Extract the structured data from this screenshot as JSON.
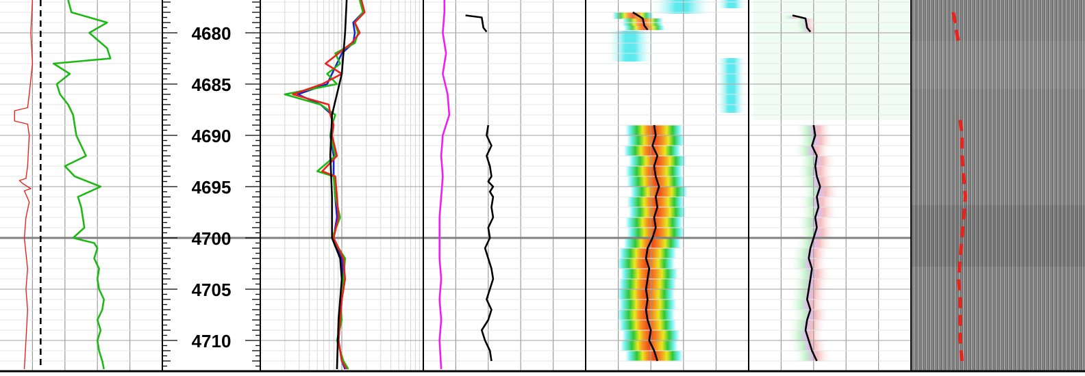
{
  "chart_data": {
    "type": "line",
    "title": "",
    "depth_axis": {
      "range": [
        4676.8,
        4712.8
      ],
      "major_labels": [
        4680,
        4685,
        4690,
        4695,
        4700,
        4705,
        4710
      ],
      "minor_tick_interval": 0.5,
      "reference_line": 4700
    },
    "tracks": [
      {
        "name": "track-1",
        "series": [
          {
            "color": "#e8231b",
            "depth": [
              4676.8,
              4680,
              4683,
              4686,
              4687.3,
              4687.6,
              4688.6,
              4688.9,
              4690,
              4693,
              4694.2,
              4694.4,
              4694.7,
              4695.2,
              4695.4,
              4696.5,
              4698,
              4700,
              4703,
              4705,
              4707,
              4710,
              4712.8
            ],
            "value": [
              0.2,
              0.19,
              0.2,
              0.18,
              0.17,
              0.09,
              0.09,
              0.17,
              0.18,
              0.17,
              0.16,
              0.12,
              0.14,
              0.19,
              0.15,
              0.18,
              0.16,
              0.15,
              0.17,
              0.16,
              0.17,
              0.16,
              0.15
            ]
          },
          {
            "color": "#000000",
            "dashed": true,
            "depth": [
              4676.8,
              4712.8
            ],
            "value": [
              0.25,
              0.25
            ]
          },
          {
            "color": "#1db814",
            "depth": [
              4676.8,
              4678,
              4679,
              4680,
              4681.5,
              4682.5,
              4683,
              4684,
              4685,
              4686,
              4687,
              4688,
              4690,
              4691,
              4692,
              4693,
              4694,
              4695,
              4696,
              4697,
              4698,
              4699,
              4700,
              4700.5,
              4701,
              4702,
              4703,
              4704,
              4705,
              4706,
              4707,
              4708,
              4709,
              4710,
              4711,
              4712,
              4712.8
            ],
            "value": [
              0.42,
              0.44,
              0.66,
              0.55,
              0.66,
              0.68,
              0.33,
              0.43,
              0.35,
              0.37,
              0.42,
              0.45,
              0.47,
              0.5,
              0.53,
              0.4,
              0.46,
              0.62,
              0.48,
              0.5,
              0.51,
              0.52,
              0.45,
              0.58,
              0.6,
              0.58,
              0.61,
              0.6,
              0.61,
              0.64,
              0.63,
              0.6,
              0.62,
              0.6,
              0.61,
              0.63,
              0.64
            ]
          }
        ]
      },
      {
        "name": "track-2",
        "log_scale": true,
        "series": [
          {
            "color": "#1a26c9",
            "depth": [
              4676.8,
              4678,
              4679,
              4680,
              4681,
              4682,
              4683,
              4684,
              4685,
              4686,
              4687,
              4688,
              4689,
              4690,
              4692,
              4694,
              4696,
              4698,
              4700,
              4702,
              4704,
              4706,
              4708,
              4710,
              4712,
              4712.8
            ],
            "value": [
              0.62,
              0.63,
              0.57,
              0.58,
              0.57,
              0.5,
              0.47,
              0.44,
              0.41,
              0.23,
              0.37,
              0.44,
              0.44,
              0.43,
              0.45,
              0.45,
              0.46,
              0.47,
              0.45,
              0.5,
              0.51,
              0.5,
              0.49,
              0.48,
              0.5,
              0.52
            ]
          },
          {
            "color": "#1db814",
            "depth": [
              4676.8,
              4678,
              4679,
              4680,
              4681,
              4682,
              4683,
              4684,
              4685,
              4686,
              4687,
              4688,
              4689,
              4690,
              4692,
              4693.5,
              4694,
              4696,
              4698,
              4700,
              4702,
              4704,
              4706,
              4708,
              4710,
              4712,
              4712.8
            ],
            "value": [
              0.61,
              0.63,
              0.58,
              0.6,
              0.58,
              0.46,
              0.49,
              0.41,
              0.47,
              0.15,
              0.37,
              0.46,
              0.44,
              0.43,
              0.46,
              0.35,
              0.45,
              0.46,
              0.49,
              0.44,
              0.52,
              0.51,
              0.49,
              0.5,
              0.47,
              0.51,
              0.54
            ]
          },
          {
            "color": "#e8231b",
            "depth": [
              4676.8,
              4678,
              4679,
              4680,
              4681,
              4682,
              4683,
              4684,
              4685,
              4686,
              4687,
              4688,
              4689,
              4690,
              4692,
              4693.5,
              4694,
              4696,
              4698,
              4700,
              4702,
              4704,
              4706,
              4708,
              4710,
              4712,
              4712.8
            ],
            "value": [
              0.62,
              0.64,
              0.58,
              0.61,
              0.56,
              0.48,
              0.4,
              0.5,
              0.38,
              0.2,
              0.42,
              0.43,
              0.45,
              0.44,
              0.47,
              0.38,
              0.46,
              0.47,
              0.48,
              0.45,
              0.51,
              0.52,
              0.5,
              0.49,
              0.48,
              0.5,
              0.53
            ]
          },
          {
            "color": "#000000",
            "depth": [
              4676.8,
              4680,
              4684,
              4688,
              4692,
              4696,
              4700,
              4702,
              4704,
              4708,
              4712.8
            ],
            "value": [
              0.53,
              0.52,
              0.5,
              0.44,
              0.43,
              0.44,
              0.44,
              0.49,
              0.5,
              0.48,
              0.47
            ]
          }
        ]
      },
      {
        "name": "track-3",
        "series": [
          {
            "color": "#f21bf2",
            "depth": [
              4676.8,
              4678,
              4680,
              4682,
              4684,
              4686,
              4688,
              4690,
              4692,
              4694,
              4696,
              4698,
              4700,
              4702,
              4704,
              4706,
              4708,
              4710,
              4712.8
            ],
            "value": [
              0.13,
              0.13,
              0.12,
              0.14,
              0.12,
              0.15,
              0.16,
              0.12,
              0.11,
              0.12,
              0.11,
              0.1,
              0.1,
              0.1,
              0.11,
              0.1,
              0.11,
              0.1,
              0.11
            ]
          },
          {
            "color": "#000000",
            "depth": [
              4678.3,
              4678.5,
              4679.5,
              4679.9
            ],
            "value": [
              0.26,
              0.36,
              0.37,
              0.39
            ]
          },
          {
            "color": "#000000",
            "depth": [
              4689,
              4690,
              4691,
              4692,
              4693,
              4694,
              4694.5,
              4695,
              4695.5,
              4696,
              4697,
              4698,
              4699,
              4700,
              4701,
              4702,
              4703,
              4704,
              4705,
              4706,
              4707,
              4708,
              4709,
              4710,
              4711,
              4712
            ],
            "value": [
              0.4,
              0.39,
              0.42,
              0.39,
              0.41,
              0.42,
              0.4,
              0.43,
              0.41,
              0.43,
              0.42,
              0.43,
              0.4,
              0.41,
              0.38,
              0.4,
              0.42,
              0.43,
              0.41,
              0.39,
              0.42,
              0.4,
              0.36,
              0.38,
              0.41,
              0.42
            ]
          }
        ]
      },
      {
        "name": "track-4",
        "series": [
          {
            "color": "#000000",
            "depth": [
              4678,
              4678.6,
              4679.3,
              4679.7
            ],
            "value": [
              0.29,
              0.35,
              0.36,
              0.38
            ]
          },
          {
            "color": "#000000",
            "depth": [
              4689,
              4690,
              4691,
              4692,
              4693,
              4694,
              4695,
              4696,
              4697,
              4698,
              4699,
              4700,
              4701,
              4702,
              4703,
              4704,
              4705,
              4706,
              4707,
              4708,
              4709,
              4710,
              4711,
              4712
            ],
            "value": [
              0.42,
              0.43,
              0.41,
              0.44,
              0.42,
              0.43,
              0.45,
              0.43,
              0.44,
              0.42,
              0.43,
              0.41,
              0.38,
              0.37,
              0.39,
              0.38,
              0.37,
              0.38,
              0.37,
              0.38,
              0.4,
              0.39,
              0.42,
              0.44
            ]
          }
        ]
      },
      {
        "name": "track-5",
        "series": [
          {
            "color": "#000000",
            "depth": [
              4678.3,
              4678.6,
              4679.5,
              4679.9
            ],
            "value": [
              0.27,
              0.35,
              0.36,
              0.38
            ]
          },
          {
            "color": "#000000",
            "depth": [
              4689,
              4690,
              4691,
              4692,
              4693,
              4694,
              4695,
              4696,
              4697,
              4698,
              4699,
              4700,
              4701,
              4702,
              4703,
              4704,
              4705,
              4706,
              4707,
              4708,
              4709,
              4710,
              4711,
              4712
            ],
            "value": [
              0.4,
              0.41,
              0.39,
              0.42,
              0.41,
              0.42,
              0.44,
              0.42,
              0.43,
              0.41,
              0.42,
              0.4,
              0.38,
              0.37,
              0.39,
              0.38,
              0.37,
              0.36,
              0.38,
              0.36,
              0.35,
              0.37,
              0.39,
              0.42
            ]
          }
        ]
      },
      {
        "name": "track-6",
        "series": [
          {
            "color": "#e8231b",
            "dashed": true,
            "depth": [
              4678,
              4679,
              4680,
              4681
            ],
            "value": [
              0.24,
              0.25,
              0.26,
              0.27
            ]
          },
          {
            "color": "#e8231b",
            "dashed": true,
            "depth": [
              4688.5,
              4690,
              4692,
              4694,
              4696,
              4698,
              4700,
              4702,
              4704,
              4706,
              4708,
              4710,
              4712
            ],
            "value": [
              0.28,
              0.29,
              0.29,
              0.3,
              0.31,
              0.3,
              0.29,
              0.28,
              0.27,
              0.28,
              0.28,
              0.28,
              0.29
            ]
          }
        ]
      }
    ]
  }
}
